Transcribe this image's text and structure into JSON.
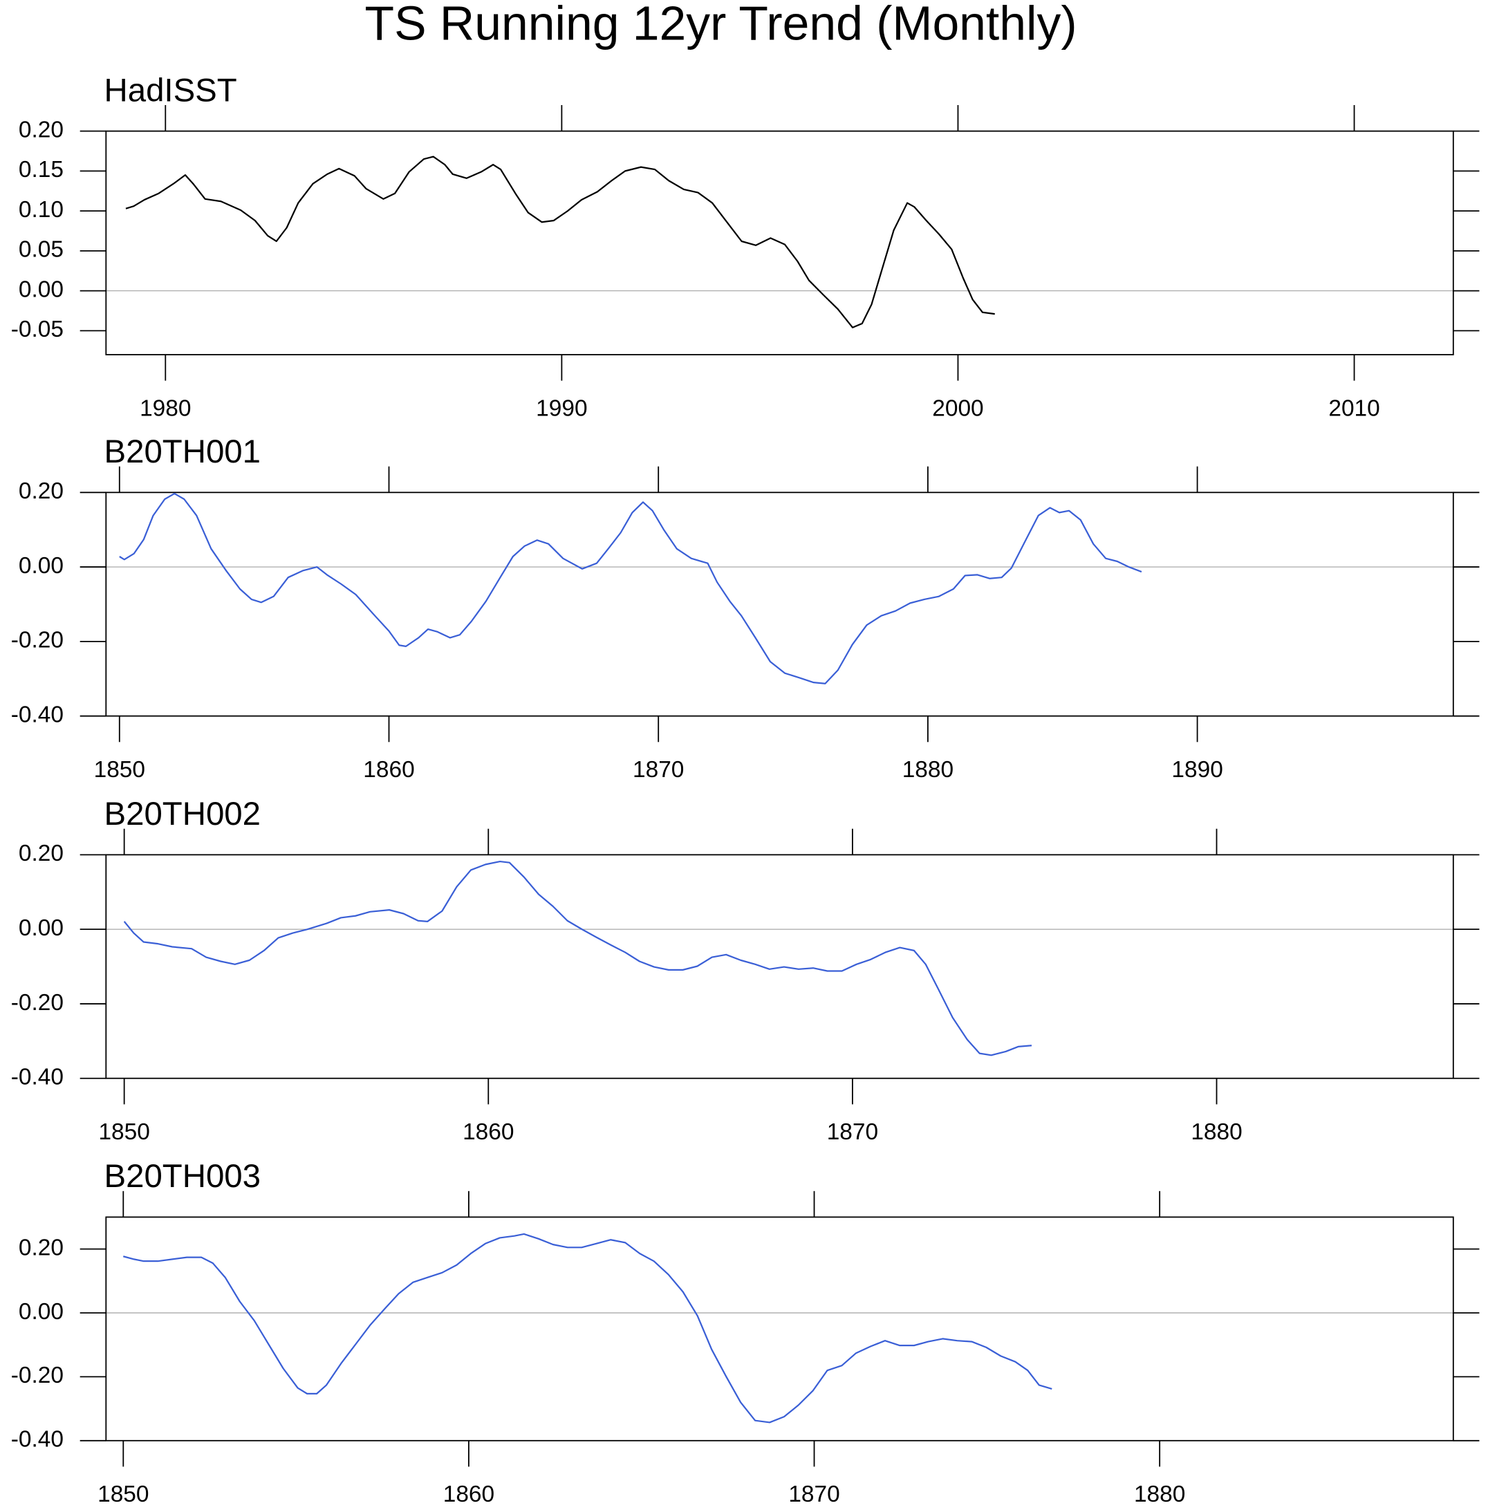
{
  "title": "TS Running 12yr Trend (Monthly)",
  "chart_data": [
    {
      "type": "line",
      "title": "HadISST",
      "xlim": [
        1978.5,
        2012.5
      ],
      "ylim": [
        -0.08,
        0.2
      ],
      "xticks": [
        1980,
        1990,
        2000,
        2010
      ],
      "yticks": [
        {
          "value": 0.2,
          "label": "0.20"
        },
        {
          "value": 0.15,
          "label": "0.15"
        },
        {
          "value": 0.1,
          "label": "0.10"
        },
        {
          "value": 0.05,
          "label": "0.05"
        },
        {
          "value": 0,
          "label": "0.00"
        },
        {
          "value": -0.05,
          "label": "-0.05"
        }
      ],
      "zero_line": true,
      "x": [
        1979.0,
        1979.2,
        1979.47,
        1979.83,
        1980.2,
        1980.5,
        1980.7,
        1981.0,
        1981.4,
        1981.9,
        1982.26,
        1982.58,
        1982.8,
        1983.06,
        1983.35,
        1983.72,
        1984.08,
        1984.38,
        1984.77,
        1985.06,
        1985.5,
        1985.79,
        1986.15,
        1986.52,
        1986.76,
        1987.05,
        1987.25,
        1987.6,
        1987.97,
        1988.27,
        1988.46,
        1988.83,
        1989.15,
        1989.5,
        1989.8,
        1990.15,
        1990.5,
        1990.9,
        1991.26,
        1991.6,
        1992.0,
        1992.35,
        1992.7,
        1993.08,
        1993.44,
        1993.8,
        1994.17,
        1994.54,
        1994.9,
        1995.27,
        1995.63,
        1995.95,
        1996.24,
        1996.6,
        1996.97,
        1997.34,
        1997.58,
        1997.82,
        1998.06,
        1998.38,
        1998.72,
        1998.9,
        1999.2,
        1999.52,
        1999.84,
        2000.13,
        2000.37,
        2000.62,
        2000.93
      ],
      "series": [
        {
          "color": "#000000",
          "values": [
            0.103,
            0.106,
            0.114,
            0.122,
            0.134,
            0.145,
            0.134,
            0.115,
            0.112,
            0.101,
            0.088,
            0.069,
            0.062,
            0.079,
            0.11,
            0.134,
            0.146,
            0.153,
            0.144,
            0.128,
            0.115,
            0.122,
            0.149,
            0.165,
            0.168,
            0.158,
            0.146,
            0.141,
            0.149,
            0.158,
            0.152,
            0.122,
            0.098,
            0.086,
            0.088,
            0.1,
            0.114,
            0.124,
            0.138,
            0.15,
            0.155,
            0.152,
            0.138,
            0.127,
            0.123,
            0.11,
            0.086,
            0.062,
            0.057,
            0.066,
            0.058,
            0.037,
            0.013,
            -0.005,
            -0.023,
            -0.046,
            -0.041,
            -0.017,
            0.023,
            0.076,
            0.11,
            0.105,
            0.088,
            0.071,
            0.052,
            0.016,
            -0.011,
            -0.027,
            -0.029
          ]
        }
      ]
    },
    {
      "type": "line",
      "title": "B20TH001",
      "xlim": [
        1849.5,
        1899.5
      ],
      "ylim": [
        -0.4,
        0.2
      ],
      "xticks": [
        1850,
        1860,
        1870,
        1880,
        1890
      ],
      "yticks": [
        {
          "value": 0.2,
          "label": "0.20"
        },
        {
          "value": 0,
          "label": "0.00"
        },
        {
          "value": -0.2,
          "label": "-0.20"
        },
        {
          "value": -0.4,
          "label": "-0.40"
        }
      ],
      "zero_line": true,
      "x": [
        1850.0,
        1850.18,
        1850.54,
        1850.9,
        1851.25,
        1851.68,
        1852.04,
        1852.4,
        1852.86,
        1853.4,
        1853.94,
        1854.47,
        1854.9,
        1855.26,
        1855.72,
        1856.26,
        1856.8,
        1857.33,
        1857.7,
        1858.23,
        1858.77,
        1859.48,
        1860.0,
        1860.38,
        1860.63,
        1861.1,
        1861.45,
        1861.8,
        1862.27,
        1862.63,
        1863.06,
        1863.6,
        1864.13,
        1864.6,
        1865.03,
        1865.5,
        1865.92,
        1866.46,
        1867.17,
        1867.71,
        1868.14,
        1868.6,
        1869.03,
        1869.43,
        1869.78,
        1870.2,
        1870.68,
        1871.22,
        1871.83,
        1872.18,
        1872.65,
        1873.08,
        1873.6,
        1874.15,
        1874.69,
        1875.22,
        1875.76,
        1876.19,
        1876.66,
        1877.2,
        1877.73,
        1878.27,
        1878.8,
        1879.34,
        1879.87,
        1880.41,
        1880.95,
        1881.38,
        1881.84,
        1882.3,
        1882.74,
        1883.1,
        1883.56,
        1884.1,
        1884.53,
        1884.88,
        1885.24,
        1885.67,
        1886.14,
        1886.6,
        1887.03,
        1887.46,
        1887.93
      ],
      "series": [
        {
          "color": "#3a5fd6",
          "values": [
            0.028,
            0.02,
            0.036,
            0.074,
            0.138,
            0.182,
            0.197,
            0.182,
            0.138,
            0.049,
            -0.008,
            -0.059,
            -0.087,
            -0.095,
            -0.079,
            -0.028,
            -0.01,
            0.0,
            -0.021,
            -0.046,
            -0.074,
            -0.131,
            -0.172,
            -0.21,
            -0.213,
            -0.19,
            -0.167,
            -0.174,
            -0.19,
            -0.182,
            -0.146,
            -0.092,
            -0.028,
            0.028,
            0.056,
            0.072,
            0.062,
            0.023,
            -0.005,
            0.01,
            0.049,
            0.092,
            0.146,
            0.174,
            0.151,
            0.1,
            0.049,
            0.023,
            0.01,
            -0.041,
            -0.092,
            -0.131,
            -0.19,
            -0.254,
            -0.285,
            -0.297,
            -0.31,
            -0.313,
            -0.277,
            -0.208,
            -0.156,
            -0.131,
            -0.118,
            -0.097,
            -0.087,
            -0.079,
            -0.059,
            -0.023,
            -0.021,
            -0.031,
            -0.028,
            -0.003,
            0.062,
            0.138,
            0.159,
            0.146,
            0.151,
            0.126,
            0.062,
            0.023,
            0.015,
            0.0,
            -0.013
          ]
        }
      ]
    },
    {
      "type": "line",
      "title": "B20TH002",
      "xlim": [
        1849.5,
        1886.5
      ],
      "ylim": [
        -0.4,
        0.2
      ],
      "xticks": [
        1850,
        1860,
        1870,
        1880
      ],
      "yticks": [
        {
          "value": 0.2,
          "label": "0.20"
        },
        {
          "value": 0,
          "label": "0.00"
        },
        {
          "value": -0.2,
          "label": "-0.20"
        },
        {
          "value": -0.4,
          "label": "-0.40"
        }
      ],
      "zero_line": true,
      "x": [
        1850.0,
        1850.26,
        1850.53,
        1850.93,
        1851.32,
        1851.85,
        1852.25,
        1852.65,
        1853.04,
        1853.44,
        1853.84,
        1854.23,
        1854.63,
        1855.03,
        1855.56,
        1855.95,
        1856.35,
        1856.75,
        1857.28,
        1857.67,
        1858.07,
        1858.33,
        1858.73,
        1859.13,
        1859.52,
        1859.92,
        1860.32,
        1860.58,
        1860.98,
        1861.38,
        1861.77,
        1862.17,
        1862.57,
        1862.96,
        1863.36,
        1863.76,
        1864.15,
        1864.55,
        1864.95,
        1865.34,
        1865.74,
        1866.14,
        1866.53,
        1866.93,
        1867.33,
        1867.72,
        1868.12,
        1868.52,
        1868.92,
        1869.31,
        1869.71,
        1870.11,
        1870.5,
        1870.9,
        1871.3,
        1871.69,
        1872.01,
        1872.35,
        1872.75,
        1873.15,
        1873.49,
        1873.81,
        1874.21,
        1874.55,
        1874.92
      ],
      "series": [
        {
          "color": "#3a5fd6",
          "values": [
            0.021,
            -0.01,
            -0.034,
            -0.039,
            -0.047,
            -0.052,
            -0.075,
            -0.086,
            -0.094,
            -0.083,
            -0.057,
            -0.023,
            -0.01,
            0,
            0.016,
            0.031,
            0.036,
            0.047,
            0.052,
            0.042,
            0.023,
            0.021,
            0.049,
            0.114,
            0.159,
            0.174,
            0.182,
            0.179,
            0.14,
            0.094,
            0.062,
            0.023,
            0,
            -0.021,
            -0.042,
            -0.062,
            -0.086,
            -0.101,
            -0.109,
            -0.109,
            -0.099,
            -0.075,
            -0.068,
            -0.083,
            -0.094,
            -0.107,
            -0.101,
            -0.107,
            -0.104,
            -0.112,
            -0.112,
            -0.094,
            -0.081,
            -0.062,
            -0.049,
            -0.057,
            -0.094,
            -0.159,
            -0.237,
            -0.296,
            -0.333,
            -0.338,
            -0.328,
            -0.315,
            -0.312
          ]
        }
      ]
    },
    {
      "type": "line",
      "title": "B20TH003",
      "xlim": [
        1849.5,
        1888.5
      ],
      "ylim": [
        -0.4,
        0.3
      ],
      "xticks": [
        1850,
        1860,
        1870,
        1880
      ],
      "yticks": [
        {
          "value": 0.2,
          "label": "0.20"
        },
        {
          "value": 0,
          "label": "0.00"
        },
        {
          "value": -0.2,
          "label": "-0.20"
        },
        {
          "value": -0.4,
          "label": "-0.40"
        }
      ],
      "zero_line": true,
      "x": [
        1850.0,
        1850.31,
        1850.59,
        1851.0,
        1851.42,
        1851.84,
        1852.26,
        1852.59,
        1852.95,
        1853.37,
        1853.79,
        1854.21,
        1854.63,
        1855.05,
        1855.32,
        1855.6,
        1855.88,
        1856.3,
        1856.72,
        1857.14,
        1857.56,
        1857.97,
        1858.39,
        1858.81,
        1859.23,
        1859.65,
        1860.06,
        1860.48,
        1860.9,
        1861.32,
        1861.6,
        1862.02,
        1862.44,
        1862.86,
        1863.27,
        1863.69,
        1864.11,
        1864.53,
        1864.95,
        1865.36,
        1865.78,
        1866.2,
        1866.62,
        1867.03,
        1867.45,
        1867.87,
        1868.29,
        1868.71,
        1869.13,
        1869.54,
        1869.96,
        1870.38,
        1870.8,
        1871.21,
        1871.63,
        1872.05,
        1872.47,
        1872.89,
        1873.3,
        1873.72,
        1874.14,
        1874.56,
        1874.98,
        1875.4,
        1875.82,
        1876.18,
        1876.51,
        1876.88
      ],
      "series": [
        {
          "color": "#3a5fd6",
          "values": [
            0.177,
            0.168,
            0.162,
            0.162,
            0.168,
            0.174,
            0.174,
            0.156,
            0.111,
            0.036,
            -0.024,
            -0.099,
            -0.174,
            -0.235,
            -0.253,
            -0.253,
            -0.226,
            -0.159,
            -0.099,
            -0.039,
            0.012,
            0.06,
            0.096,
            0.111,
            0.126,
            0.15,
            0.186,
            0.217,
            0.235,
            0.241,
            0.247,
            0.232,
            0.214,
            0.205,
            0.205,
            0.217,
            0.229,
            0.22,
            0.186,
            0.162,
            0.12,
            0.066,
            -0.009,
            -0.114,
            -0.199,
            -0.28,
            -0.337,
            -0.343,
            -0.325,
            -0.289,
            -0.244,
            -0.18,
            -0.165,
            -0.126,
            -0.105,
            -0.087,
            -0.102,
            -0.102,
            -0.09,
            -0.081,
            -0.087,
            -0.09,
            -0.108,
            -0.135,
            -0.153,
            -0.18,
            -0.226,
            -0.238
          ]
        }
      ]
    }
  ]
}
